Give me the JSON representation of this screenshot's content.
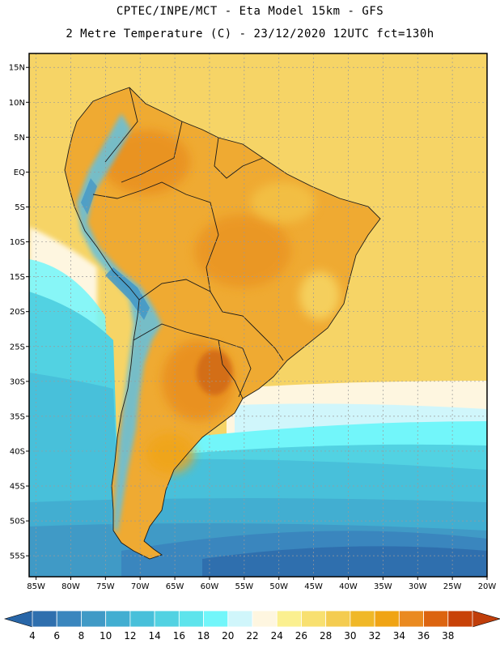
{
  "title": {
    "line1": "CPTEC/INPE/MCT -  Eta Model 15km - GFS",
    "line2": "2 Metre Temperature (C) - 23/12/2020 12UTC fct=130h"
  },
  "map": {
    "lon_range": [
      -86,
      -20
    ],
    "lat_range": [
      -58,
      17
    ],
    "lat_ticks": [
      {
        "value": 15,
        "label": "15N"
      },
      {
        "value": 10,
        "label": "10N"
      },
      {
        "value": 5,
        "label": "5N"
      },
      {
        "value": 0,
        "label": "EQ"
      },
      {
        "value": -5,
        "label": "5S"
      },
      {
        "value": -10,
        "label": "10S"
      },
      {
        "value": -15,
        "label": "15S"
      },
      {
        "value": -20,
        "label": "20S"
      },
      {
        "value": -25,
        "label": "25S"
      },
      {
        "value": -30,
        "label": "30S"
      },
      {
        "value": -35,
        "label": "35S"
      },
      {
        "value": -40,
        "label": "40S"
      },
      {
        "value": -45,
        "label": "45S"
      },
      {
        "value": -50,
        "label": "50S"
      },
      {
        "value": -55,
        "label": "55S"
      }
    ],
    "lon_ticks": [
      {
        "value": -85,
        "label": "85W"
      },
      {
        "value": -80,
        "label": "80W"
      },
      {
        "value": -75,
        "label": "75W"
      },
      {
        "value": -70,
        "label": "70W"
      },
      {
        "value": -65,
        "label": "65W"
      },
      {
        "value": -60,
        "label": "60W"
      },
      {
        "value": -55,
        "label": "55W"
      },
      {
        "value": -50,
        "label": "50W"
      },
      {
        "value": -45,
        "label": "45W"
      },
      {
        "value": -40,
        "label": "40W"
      },
      {
        "value": -35,
        "label": "35W"
      },
      {
        "value": -30,
        "label": "30W"
      },
      {
        "value": -25,
        "label": "25W"
      },
      {
        "value": -20,
        "label": "20W"
      }
    ],
    "colors": {
      "frame": "#000000",
      "grid": "#9a9a9a",
      "border": "#1a1a1a",
      "warm_ocean": "#f6d466",
      "land": "#efaa32",
      "land_hot": "#e88c1e",
      "hot_spot": "#d06818",
      "andes_cold": "#6ac0d8",
      "andes_colder": "#3f93c6"
    }
  },
  "colorbar": {
    "levels": [
      {
        "label": "4",
        "color": "#2f6fae"
      },
      {
        "label": "6",
        "color": "#3a86be"
      },
      {
        "label": "8",
        "color": "#409ac6"
      },
      {
        "label": "10",
        "color": "#42aed1"
      },
      {
        "label": "12",
        "color": "#48c0da"
      },
      {
        "label": "14",
        "color": "#52d2e2"
      },
      {
        "label": "16",
        "color": "#5ee4ec"
      },
      {
        "label": "18",
        "color": "#72f6fa"
      },
      {
        "label": "20",
        "color": "#d0f6fb"
      },
      {
        "label": "22",
        "color": "#fef6e0"
      },
      {
        "label": "24",
        "color": "#fbf090"
      },
      {
        "label": "26",
        "color": "#f8e070"
      },
      {
        "label": "28",
        "color": "#f4cc50"
      },
      {
        "label": "30",
        "color": "#f0b828"
      },
      {
        "label": "32",
        "color": "#f0a414"
      },
      {
        "label": "34",
        "color": "#ea8a20"
      },
      {
        "label": "36",
        "color": "#dc6410"
      },
      {
        "label": "38",
        "color": "#c84208"
      }
    ],
    "low_end_color": "#2866a8",
    "high_end_color": "#c03e0a"
  }
}
